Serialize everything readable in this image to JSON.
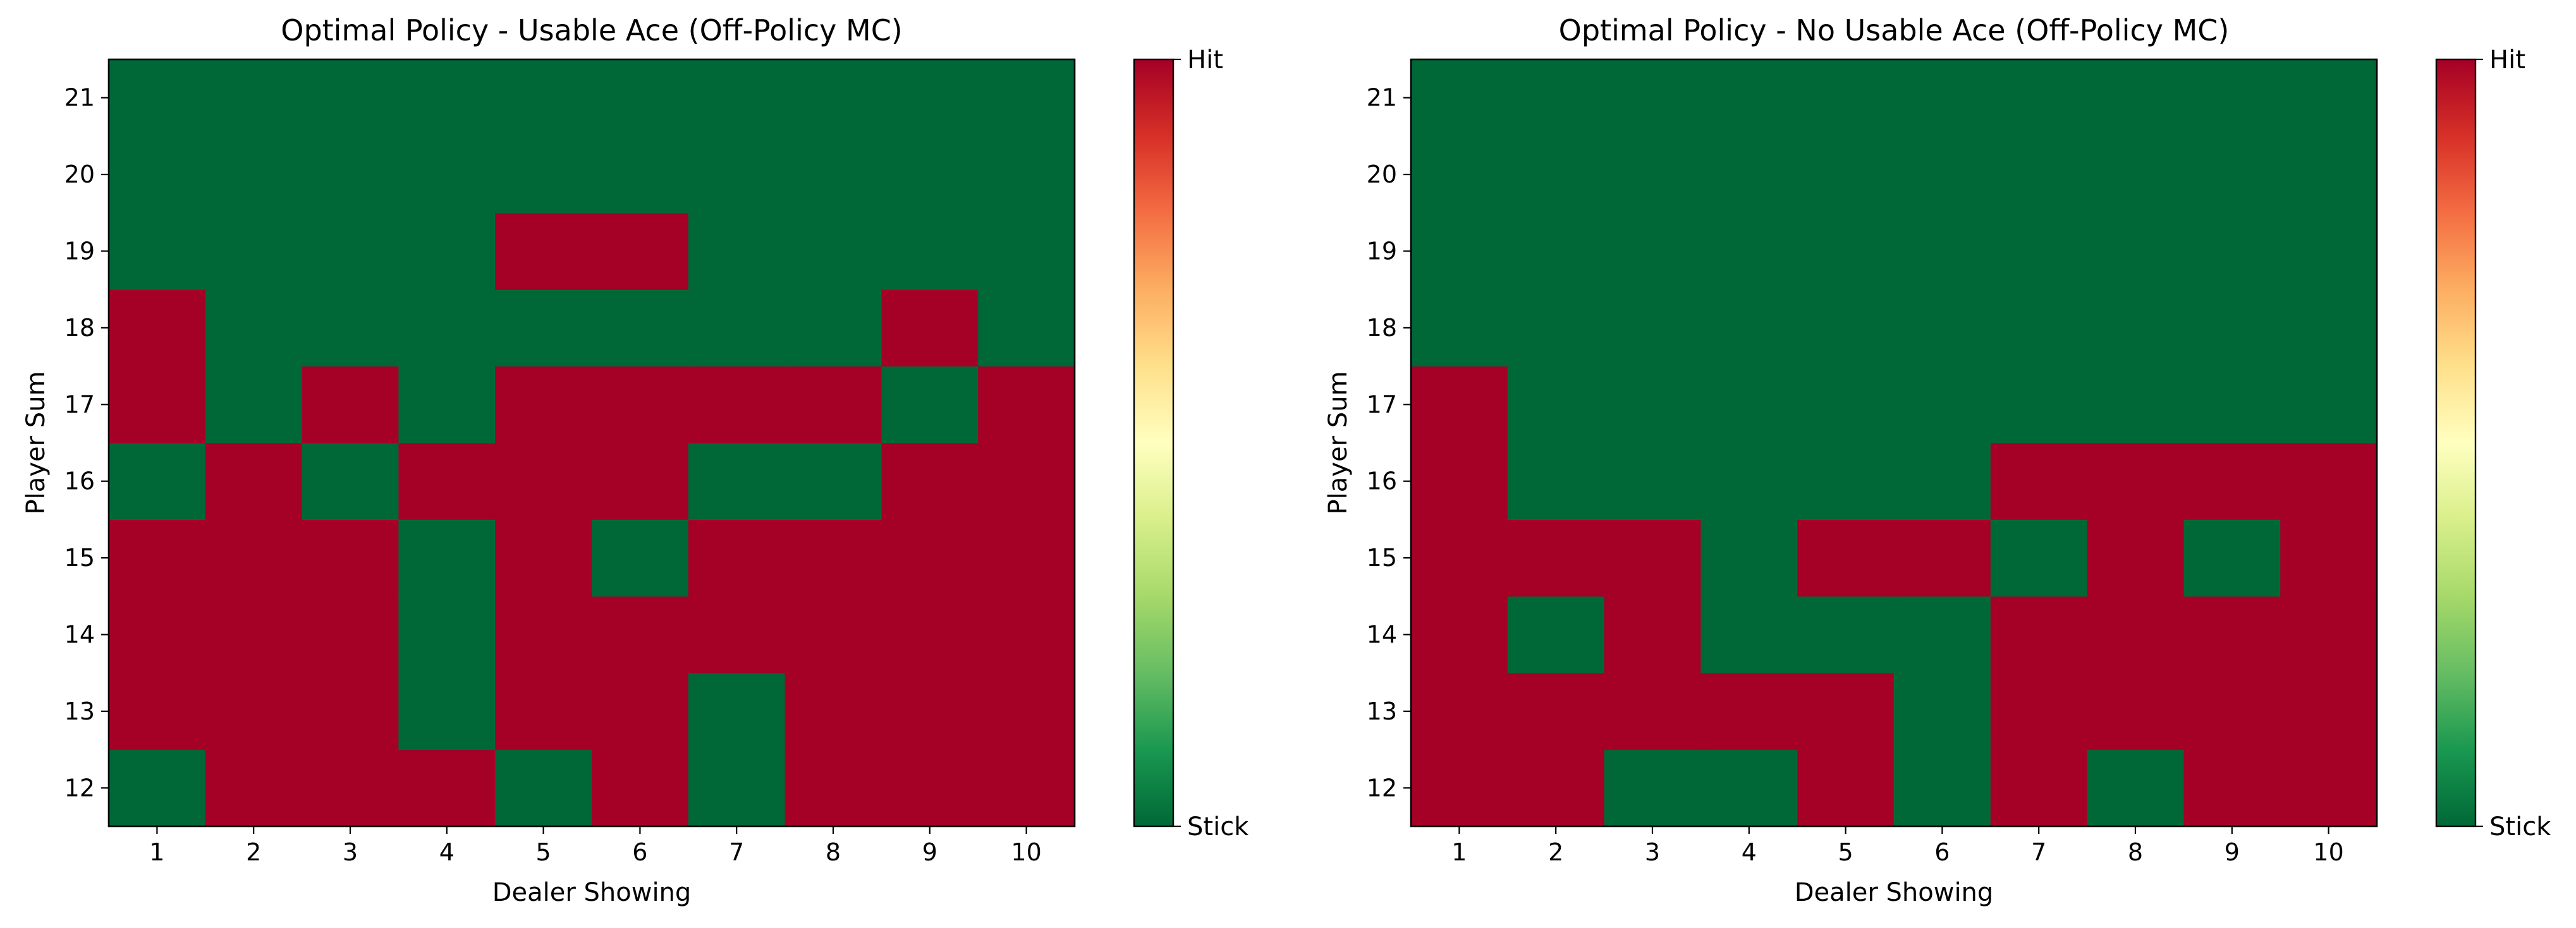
{
  "chart_data": [
    {
      "type": "heatmap",
      "title": "Optimal Policy - Usable Ace (Off-Policy MC)",
      "xlabel": "Dealer Showing",
      "ylabel": "Player Sum",
      "x_categories": [
        "1",
        "2",
        "3",
        "4",
        "5",
        "6",
        "7",
        "8",
        "9",
        "10"
      ],
      "y_categories": [
        "12",
        "13",
        "14",
        "15",
        "16",
        "17",
        "18",
        "19",
        "20",
        "21"
      ],
      "value_encoding": {
        "0": "Stick",
        "1": "Hit"
      },
      "matrix_rows_from_player_sum_12_to_21": [
        [
          0,
          1,
          1,
          1,
          0,
          1,
          0,
          1,
          1,
          1
        ],
        [
          1,
          1,
          1,
          0,
          1,
          1,
          0,
          1,
          1,
          1
        ],
        [
          1,
          1,
          1,
          0,
          1,
          1,
          1,
          1,
          1,
          1
        ],
        [
          1,
          1,
          1,
          0,
          1,
          0,
          1,
          1,
          1,
          1
        ],
        [
          0,
          1,
          0,
          1,
          1,
          1,
          0,
          0,
          1,
          1
        ],
        [
          1,
          0,
          1,
          0,
          1,
          1,
          1,
          1,
          0,
          1
        ],
        [
          1,
          0,
          0,
          0,
          0,
          0,
          0,
          0,
          1,
          0
        ],
        [
          0,
          0,
          0,
          0,
          1,
          1,
          0,
          0,
          0,
          0
        ],
        [
          0,
          0,
          0,
          0,
          0,
          0,
          0,
          0,
          0,
          0
        ],
        [
          0,
          0,
          0,
          0,
          0,
          0,
          0,
          0,
          0,
          0
        ]
      ],
      "colorbar": {
        "min_label": "Stick",
        "max_label": "Hit",
        "colormap": "RdYlGn_r"
      },
      "grid": false
    },
    {
      "type": "heatmap",
      "title": "Optimal Policy - No Usable Ace (Off-Policy MC)",
      "xlabel": "Dealer Showing",
      "ylabel": "Player Sum",
      "x_categories": [
        "1",
        "2",
        "3",
        "4",
        "5",
        "6",
        "7",
        "8",
        "9",
        "10"
      ],
      "y_categories": [
        "12",
        "13",
        "14",
        "15",
        "16",
        "17",
        "18",
        "19",
        "20",
        "21"
      ],
      "value_encoding": {
        "0": "Stick",
        "1": "Hit"
      },
      "matrix_rows_from_player_sum_12_to_21": [
        [
          1,
          1,
          0,
          0,
          1,
          0,
          1,
          0,
          1,
          1
        ],
        [
          1,
          1,
          1,
          1,
          1,
          0,
          1,
          1,
          1,
          1
        ],
        [
          1,
          0,
          1,
          0,
          0,
          0,
          1,
          1,
          1,
          1
        ],
        [
          1,
          1,
          1,
          0,
          1,
          1,
          0,
          1,
          0,
          1
        ],
        [
          1,
          0,
          0,
          0,
          0,
          0,
          1,
          1,
          1,
          1
        ],
        [
          1,
          0,
          0,
          0,
          0,
          0,
          0,
          0,
          0,
          0
        ],
        [
          0,
          0,
          0,
          0,
          0,
          0,
          0,
          0,
          0,
          0
        ],
        [
          0,
          0,
          0,
          0,
          0,
          0,
          0,
          0,
          0,
          0
        ],
        [
          0,
          0,
          0,
          0,
          0,
          0,
          0,
          0,
          0,
          0
        ],
        [
          0,
          0,
          0,
          0,
          0,
          0,
          0,
          0,
          0,
          0
        ]
      ],
      "colorbar": {
        "min_label": "Stick",
        "max_label": "Hit",
        "colormap": "RdYlGn_r"
      },
      "grid": false
    }
  ],
  "colors": {
    "stick": "#006837",
    "hit": "#a50026",
    "axis": "#000000",
    "background": "#ffffff",
    "colormap_stops": [
      "#006837",
      "#1a9850",
      "#66bd63",
      "#a6d96a",
      "#d9ef8b",
      "#ffffbf",
      "#fee08b",
      "#fdae61",
      "#f46d43",
      "#d73027",
      "#a50026"
    ]
  }
}
